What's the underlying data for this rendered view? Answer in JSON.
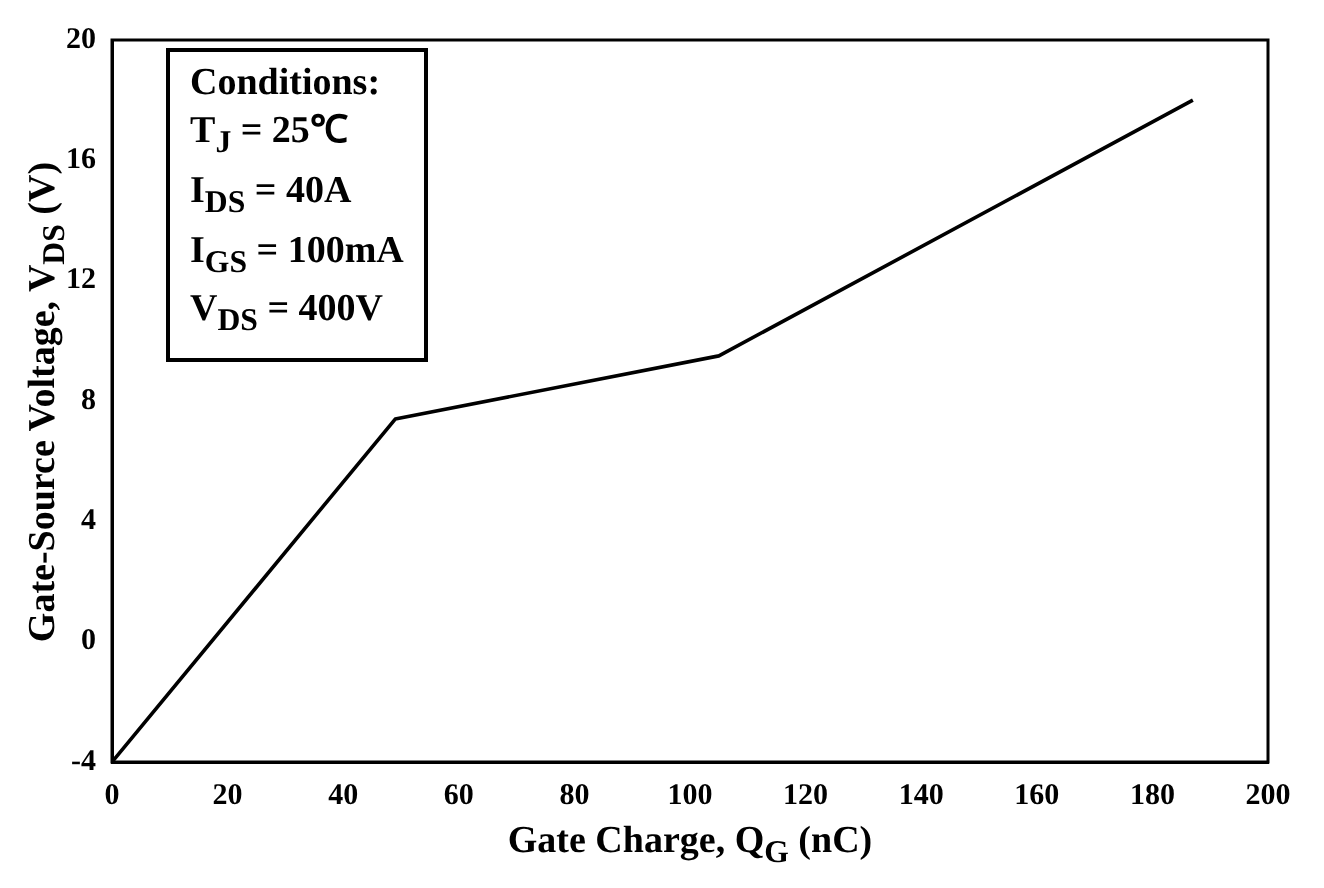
{
  "chart_data": {
    "type": "line",
    "xlabel": "Gate Charge, Q$_{G}$ (nC)",
    "ylabel": "Gate-Source Voltage, V$_{DS}$ (V)",
    "x": [
      0,
      49,
      105,
      187
    ],
    "series": [
      {
        "color": "#000000",
        "values": [
          -4,
          7.4,
          9.5,
          18
        ]
      }
    ],
    "xlim": [
      0,
      200
    ],
    "xticks": [
      0,
      20,
      40,
      60,
      80,
      100,
      120,
      140,
      160,
      180,
      200
    ],
    "ylim": [
      -4,
      20
    ],
    "yticks": [
      -4,
      0,
      4,
      8,
      12,
      16,
      20
    ],
    "grid": false,
    "legend": false,
    "marker": "none",
    "line_style": "solid",
    "annotations": [
      "Conditions:",
      "T$_{J}$ = 25℃",
      "I$_{DS}$ = 40A",
      "I$_{GS}$ = 100mA",
      "V$_{DS}$ = 400V"
    ]
  }
}
